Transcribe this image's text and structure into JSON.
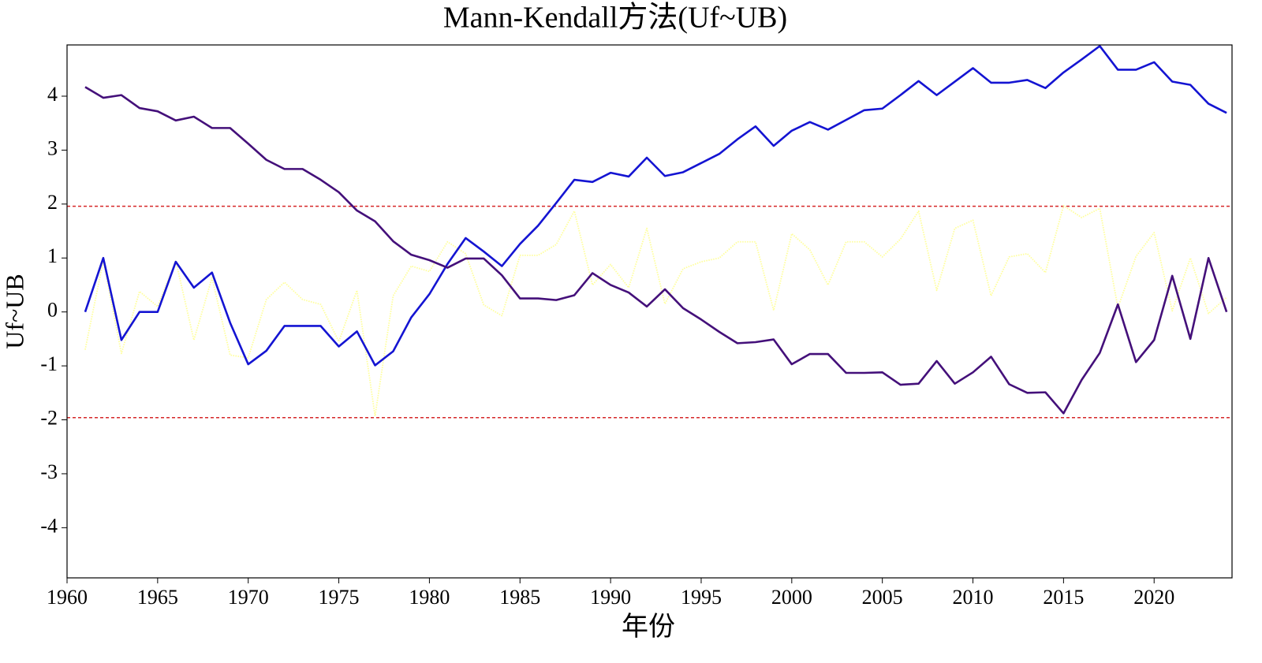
{
  "chart_data": {
    "type": "line",
    "title": "Mann-Kendall方法(Uf~UB)",
    "xlabel": "年份",
    "ylabel": "Uf~UB",
    "x": [
      1961,
      1962,
      1963,
      1964,
      1965,
      1966,
      1967,
      1968,
      1969,
      1970,
      1971,
      1972,
      1973,
      1974,
      1975,
      1976,
      1977,
      1978,
      1979,
      1980,
      1981,
      1982,
      1983,
      1984,
      1985,
      1986,
      1987,
      1988,
      1989,
      1990,
      1991,
      1992,
      1993,
      1994,
      1995,
      1996,
      1997,
      1998,
      1999,
      2000,
      2001,
      2002,
      2003,
      2004,
      2005,
      2006,
      2007,
      2008,
      2009,
      2010,
      2011,
      2012,
      2013,
      2014,
      2015,
      2016,
      2017,
      2018,
      2019,
      2020,
      2021,
      2022,
      2023,
      2024
    ],
    "series": [
      {
        "color": "#ffff99",
        "linestyle": "dotted",
        "values": [
          -0.7,
          0.95,
          -0.77,
          0.38,
          0.1,
          0.95,
          -0.52,
          0.63,
          -0.8,
          -0.85,
          0.23,
          0.55,
          0.23,
          0.14,
          -0.55,
          0.4,
          -1.93,
          0.3,
          0.85,
          0.75,
          1.3,
          1.08,
          0.13,
          -0.07,
          1.05,
          1.05,
          1.25,
          1.87,
          0.5,
          0.88,
          0.45,
          1.55,
          0.15,
          0.8,
          0.93,
          1.0,
          1.3,
          1.3,
          0.03,
          1.45,
          1.15,
          0.5,
          1.3,
          1.3,
          1.02,
          1.35,
          1.87,
          0.4,
          1.55,
          1.7,
          0.3,
          1.02,
          1.08,
          0.73,
          1.97,
          1.75,
          1.92,
          0.08,
          1.03,
          1.47,
          0.02,
          1.0,
          -0.03,
          0.27
        ]
      },
      {
        "color": "#1414d2",
        "linestyle": "solid",
        "values": [
          0,
          1.0,
          -0.52,
          0,
          0,
          0.93,
          0.45,
          0.73,
          -0.2,
          -0.97,
          -0.72,
          -0.26,
          -0.26,
          -0.26,
          -0.64,
          -0.36,
          -0.99,
          -0.73,
          -0.1,
          0.33,
          0.89,
          1.37,
          1.12,
          0.85,
          1.26,
          1.6,
          2.02,
          2.45,
          2.41,
          2.58,
          2.51,
          2.86,
          2.52,
          2.59,
          2.76,
          2.93,
          3.2,
          3.44,
          3.08,
          3.36,
          3.52,
          3.38,
          3.56,
          3.74,
          3.77,
          4.02,
          4.28,
          4.02,
          4.27,
          4.52,
          4.25,
          4.25,
          4.3,
          4.15,
          4.44,
          4.68,
          4.93,
          4.49,
          4.49,
          4.63,
          4.27,
          4.21,
          3.86,
          3.69
        ]
      },
      {
        "color": "#44107a",
        "linestyle": "solid",
        "values": [
          4.17,
          3.97,
          4.02,
          3.78,
          3.72,
          3.55,
          3.62,
          3.41,
          3.41,
          3.12,
          2.82,
          2.65,
          2.65,
          2.45,
          2.22,
          1.88,
          1.68,
          1.31,
          1.06,
          0.96,
          0.82,
          0.99,
          0.99,
          0.68,
          0.25,
          0.25,
          0.22,
          0.31,
          0.72,
          0.5,
          0.36,
          0.1,
          0.42,
          0.07,
          -0.14,
          -0.37,
          -0.58,
          -0.56,
          -0.51,
          -0.97,
          -0.78,
          -0.78,
          -1.13,
          -1.13,
          -1.12,
          -1.35,
          -1.33,
          -0.91,
          -1.33,
          -1.12,
          -0.83,
          -1.34,
          -1.5,
          -1.49,
          -1.88,
          -1.26,
          -0.76,
          0.14,
          -0.93,
          -0.52,
          0.67,
          -0.5,
          1.0,
          0
        ]
      }
    ],
    "reference_lines": [
      1.96,
      -1.96
    ],
    "reference_color": "#d62728",
    "xlim": [
      1960,
      2024.3
    ],
    "xticks": [
      1960,
      1965,
      1970,
      1975,
      1980,
      1985,
      1990,
      1995,
      2000,
      2005,
      2010,
      2015,
      2020
    ],
    "ylim": [
      -4.93,
      4.95
    ],
    "yticks": [
      -4,
      -3,
      -2,
      -1,
      0,
      1,
      2,
      3,
      4
    ]
  }
}
